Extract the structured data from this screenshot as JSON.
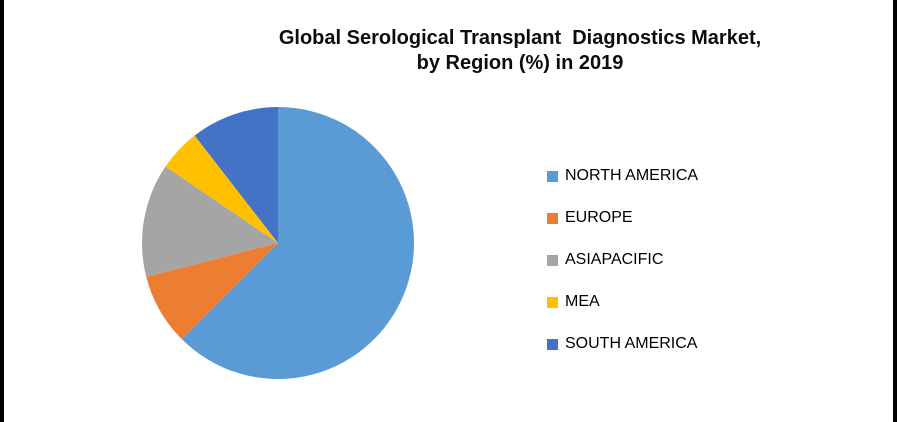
{
  "frame": {
    "background": "#FFFFFF",
    "side_bar_color": "#000000"
  },
  "chart": {
    "title_display": "Global Serological Transplant  Diagnostics Market,\nby Region (%) in 2019"
  },
  "chart_data": {
    "type": "pie",
    "title": "Global Serological Transplant Diagnostics Market, by Region (%) in 2019",
    "categories": [
      "NORTH AMERICA",
      "EUROPE",
      "ASIAPACIFIC",
      "MEA",
      "SOUTH AMERICA"
    ],
    "values": [
      62.5,
      8.5,
      13.5,
      5,
      10.5
    ],
    "unit": "%",
    "colors": [
      "#5B9BD5",
      "#ED7D31",
      "#A5A5A5",
      "#FFC000",
      "#4472C4"
    ],
    "start_angle_deg": 0,
    "direction": "clockwise",
    "legend_position": "right",
    "data_labels": false,
    "title_color": "#0d0d0d",
    "legend_text_color": "#000000"
  }
}
